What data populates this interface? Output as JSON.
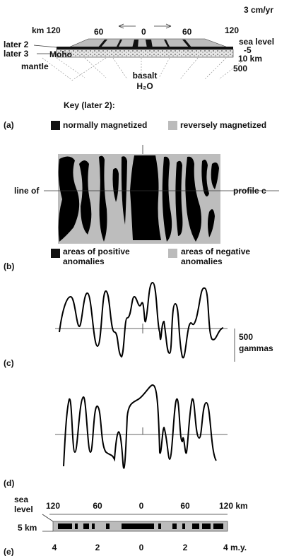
{
  "top": {
    "rate": "3 cm/yr",
    "km_label": "km 120",
    "dist_ticks": [
      "60",
      "0",
      "60",
      "120"
    ],
    "sea_level": "sea level",
    "later2": "later 2",
    "depth5": "-5",
    "later3": "later 3",
    "moho": "Moho",
    "depth10": "10 km",
    "mantle": "mantle",
    "depth500": "500",
    "basalt": "basalt",
    "water": "H₂O"
  },
  "key_title": "Key (later 2):",
  "panel_a": {
    "label": "(a)",
    "normal": "normally magnetized",
    "reverse": "reversely magnetized"
  },
  "panel_b": {
    "line_left": "line of",
    "line_right": "profile c",
    "label": "(b)",
    "positive": [
      "areas of positive",
      "anomalies"
    ],
    "negative": [
      "areas of negative",
      "anomalies"
    ]
  },
  "panel_c": {
    "label": "(c)",
    "scale": [
      "500",
      "gammas"
    ]
  },
  "panel_d": {
    "label": "(d)"
  },
  "panel_e": {
    "label": "(e)",
    "sea_level": [
      "sea",
      "level"
    ],
    "depth": "5 km",
    "distance_ticks": [
      "120",
      "60",
      "0",
      "60",
      "120 km"
    ],
    "age_ticks": [
      "4",
      "2",
      "0",
      "2",
      "4 m.y."
    ]
  }
}
